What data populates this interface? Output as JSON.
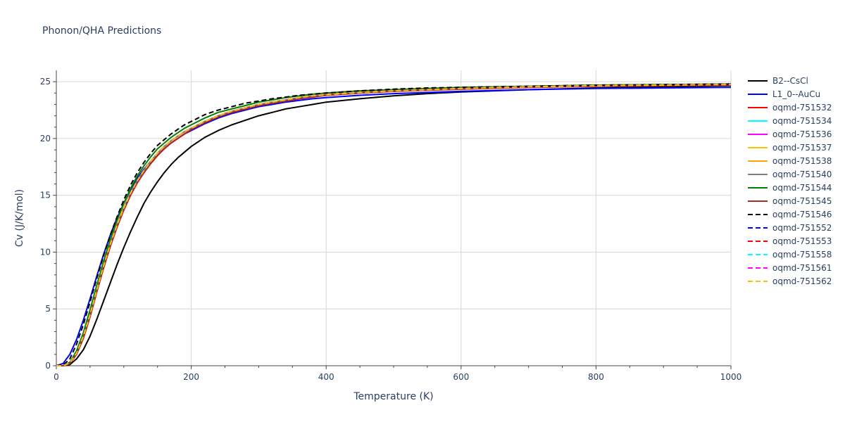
{
  "chart_data": {
    "type": "line",
    "title": "Phonon/QHA Predictions",
    "xlabel": "Temperature (K)",
    "ylabel": "Cv (J/K/mol)",
    "xlim": [
      0,
      1000
    ],
    "ylim": [
      0,
      26
    ],
    "xticks": [
      0,
      200,
      400,
      600,
      800,
      1000
    ],
    "yticks": [
      0,
      5,
      10,
      15,
      20,
      25
    ],
    "grid": true,
    "legend_position": "right",
    "x": [
      0,
      10,
      20,
      30,
      40,
      50,
      60,
      70,
      80,
      90,
      100,
      110,
      120,
      130,
      140,
      150,
      160,
      170,
      180,
      190,
      200,
      220,
      240,
      260,
      280,
      300,
      320,
      340,
      360,
      380,
      400,
      450,
      500,
      550,
      600,
      700,
      800,
      900,
      1000
    ],
    "series": [
      {
        "name": "B2--CsCl",
        "color": "#000000",
        "dash": "solid",
        "values": [
          0,
          0,
          0.1,
          0.6,
          1.4,
          2.6,
          4.1,
          5.7,
          7.3,
          8.9,
          10.4,
          11.8,
          13.1,
          14.3,
          15.3,
          16.2,
          17.0,
          17.7,
          18.3,
          18.8,
          19.3,
          20.1,
          20.7,
          21.2,
          21.6,
          22.0,
          22.3,
          22.6,
          22.8,
          23.0,
          23.2,
          23.5,
          23.75,
          23.95,
          24.1,
          24.3,
          24.45,
          24.55,
          24.65
        ]
      },
      {
        "name": "L1_0--AuCu",
        "color": "#0000ff",
        "dash": "solid",
        "values": [
          0,
          0.2,
          1.0,
          2.3,
          4.0,
          5.9,
          7.9,
          9.8,
          11.5,
          13.0,
          14.3,
          15.5,
          16.5,
          17.3,
          18.0,
          18.6,
          19.1,
          19.6,
          20.0,
          20.4,
          20.7,
          21.3,
          21.8,
          22.2,
          22.5,
          22.8,
          23.0,
          23.2,
          23.35,
          23.5,
          23.6,
          23.8,
          23.95,
          24.05,
          24.15,
          24.3,
          24.4,
          24.45,
          24.5
        ]
      },
      {
        "name": "oqmd-751532",
        "color": "#ff0000",
        "dash": "solid",
        "values": [
          0,
          0,
          0.2,
          1.0,
          2.4,
          4.3,
          6.5,
          8.6,
          10.5,
          12.2,
          13.7,
          15.0,
          16.1,
          17.0,
          17.8,
          18.5,
          19.1,
          19.6,
          20.0,
          20.4,
          20.8,
          21.4,
          21.9,
          22.3,
          22.6,
          22.9,
          23.1,
          23.3,
          23.5,
          23.65,
          23.8,
          24.0,
          24.15,
          24.25,
          24.35,
          24.5,
          24.6,
          24.65,
          24.7
        ]
      },
      {
        "name": "oqmd-751534",
        "color": "#00ffff",
        "dash": "solid",
        "values": [
          0,
          0,
          0.25,
          1.1,
          2.6,
          4.5,
          6.7,
          8.8,
          10.7,
          12.4,
          13.9,
          15.2,
          16.3,
          17.2,
          18.0,
          18.7,
          19.3,
          19.8,
          20.2,
          20.6,
          20.9,
          21.5,
          22.0,
          22.4,
          22.7,
          23.0,
          23.2,
          23.4,
          23.6,
          23.75,
          23.85,
          24.05,
          24.2,
          24.3,
          24.4,
          24.55,
          24.65,
          24.7,
          24.75
        ]
      },
      {
        "name": "oqmd-751536",
        "color": "#ff00ff",
        "dash": "solid",
        "values": [
          0,
          0,
          0.25,
          1.1,
          2.6,
          4.5,
          6.7,
          8.8,
          10.7,
          12.4,
          13.9,
          15.2,
          16.3,
          17.2,
          18.0,
          18.7,
          19.3,
          19.8,
          20.2,
          20.6,
          20.9,
          21.5,
          22.0,
          22.4,
          22.7,
          23.0,
          23.2,
          23.4,
          23.6,
          23.75,
          23.85,
          24.05,
          24.2,
          24.3,
          24.4,
          24.55,
          24.65,
          24.7,
          24.75
        ]
      },
      {
        "name": "oqmd-751537",
        "color": "#ffbf00",
        "dash": "solid",
        "values": [
          0,
          0,
          0.25,
          1.1,
          2.6,
          4.5,
          6.7,
          8.8,
          10.7,
          12.4,
          13.9,
          15.2,
          16.3,
          17.2,
          18.0,
          18.7,
          19.3,
          19.8,
          20.2,
          20.6,
          20.9,
          21.5,
          22.0,
          22.4,
          22.7,
          23.0,
          23.2,
          23.4,
          23.6,
          23.75,
          23.85,
          24.05,
          24.2,
          24.3,
          24.4,
          24.55,
          24.65,
          24.7,
          24.75
        ]
      },
      {
        "name": "oqmd-751538",
        "color": "#ffa500",
        "dash": "solid",
        "values": [
          0,
          0,
          0.25,
          1.1,
          2.6,
          4.5,
          6.7,
          8.8,
          10.7,
          12.4,
          13.9,
          15.2,
          16.3,
          17.2,
          18.0,
          18.7,
          19.3,
          19.8,
          20.2,
          20.6,
          20.9,
          21.5,
          22.0,
          22.4,
          22.7,
          23.0,
          23.2,
          23.4,
          23.6,
          23.75,
          23.85,
          24.05,
          24.2,
          24.3,
          24.4,
          24.55,
          24.65,
          24.7,
          24.75
        ]
      },
      {
        "name": "oqmd-751540",
        "color": "#808080",
        "dash": "solid",
        "values": [
          0,
          0,
          0.25,
          1.1,
          2.6,
          4.5,
          6.7,
          8.8,
          10.7,
          12.4,
          13.9,
          15.2,
          16.3,
          17.2,
          18.0,
          18.7,
          19.3,
          19.8,
          20.2,
          20.6,
          20.9,
          21.5,
          22.0,
          22.4,
          22.7,
          23.0,
          23.2,
          23.4,
          23.6,
          23.75,
          23.85,
          24.05,
          24.2,
          24.3,
          24.4,
          24.55,
          24.65,
          24.7,
          24.75
        ]
      },
      {
        "name": "oqmd-751544",
        "color": "#008000",
        "dash": "solid",
        "values": [
          0,
          0,
          0.3,
          1.3,
          2.9,
          4.9,
          7.1,
          9.2,
          11.1,
          12.8,
          14.3,
          15.6,
          16.7,
          17.6,
          18.4,
          19.1,
          19.6,
          20.1,
          20.5,
          20.9,
          21.2,
          21.8,
          22.3,
          22.6,
          22.9,
          23.2,
          23.4,
          23.6,
          23.75,
          23.9,
          24.0,
          24.2,
          24.3,
          24.4,
          24.5,
          24.6,
          24.7,
          24.75,
          24.8
        ]
      },
      {
        "name": "oqmd-751545",
        "color": "#a52a2a",
        "dash": "solid",
        "values": [
          0,
          0,
          0.2,
          1.0,
          2.4,
          4.3,
          6.5,
          8.6,
          10.5,
          12.2,
          13.7,
          15.0,
          16.1,
          17.0,
          17.8,
          18.5,
          19.1,
          19.6,
          20.0,
          20.4,
          20.8,
          21.4,
          21.9,
          22.3,
          22.6,
          22.9,
          23.1,
          23.3,
          23.5,
          23.65,
          23.8,
          24.0,
          24.15,
          24.25,
          24.35,
          24.5,
          24.6,
          24.65,
          24.7
        ]
      },
      {
        "name": "oqmd-751546",
        "color": "#000000",
        "dash": "dash",
        "values": [
          0,
          0.05,
          0.6,
          1.9,
          3.6,
          5.6,
          7.7,
          9.7,
          11.5,
          13.1,
          14.6,
          15.9,
          17.0,
          17.9,
          18.7,
          19.4,
          19.9,
          20.4,
          20.8,
          21.2,
          21.5,
          22.1,
          22.5,
          22.8,
          23.1,
          23.3,
          23.5,
          23.65,
          23.8,
          23.9,
          24.0,
          24.2,
          24.35,
          24.45,
          24.5,
          24.6,
          24.7,
          24.75,
          24.8
        ]
      },
      {
        "name": "oqmd-751552",
        "color": "#0000ff",
        "dash": "dash",
        "values": [
          0,
          0,
          0.25,
          1.1,
          2.6,
          4.5,
          6.7,
          8.8,
          10.7,
          12.4,
          13.9,
          15.2,
          16.3,
          17.2,
          18.0,
          18.7,
          19.3,
          19.8,
          20.2,
          20.6,
          20.9,
          21.5,
          22.0,
          22.4,
          22.7,
          23.0,
          23.2,
          23.4,
          23.6,
          23.75,
          23.85,
          24.05,
          24.2,
          24.3,
          24.4,
          24.55,
          24.65,
          24.7,
          24.75
        ]
      },
      {
        "name": "oqmd-751553",
        "color": "#ff0000",
        "dash": "dash",
        "values": [
          0,
          0,
          0.25,
          1.1,
          2.6,
          4.5,
          6.7,
          8.8,
          10.7,
          12.4,
          13.9,
          15.2,
          16.3,
          17.2,
          18.0,
          18.7,
          19.3,
          19.8,
          20.2,
          20.6,
          20.9,
          21.5,
          22.0,
          22.4,
          22.7,
          23.0,
          23.2,
          23.4,
          23.6,
          23.75,
          23.85,
          24.05,
          24.2,
          24.3,
          24.4,
          24.55,
          24.65,
          24.7,
          24.75
        ]
      },
      {
        "name": "oqmd-751558",
        "color": "#00ffff",
        "dash": "dash",
        "values": [
          0,
          0,
          0.25,
          1.1,
          2.6,
          4.5,
          6.7,
          8.8,
          10.7,
          12.4,
          13.9,
          15.2,
          16.3,
          17.2,
          18.0,
          18.7,
          19.3,
          19.8,
          20.2,
          20.6,
          20.9,
          21.5,
          22.0,
          22.4,
          22.7,
          23.0,
          23.2,
          23.4,
          23.6,
          23.75,
          23.85,
          24.05,
          24.2,
          24.3,
          24.4,
          24.55,
          24.65,
          24.7,
          24.75
        ]
      },
      {
        "name": "oqmd-751561",
        "color": "#ff00ff",
        "dash": "dash",
        "values": [
          0,
          0,
          0.25,
          1.1,
          2.6,
          4.5,
          6.7,
          8.8,
          10.7,
          12.4,
          13.9,
          15.2,
          16.3,
          17.2,
          18.0,
          18.7,
          19.3,
          19.8,
          20.2,
          20.6,
          20.9,
          21.5,
          22.0,
          22.4,
          22.7,
          23.0,
          23.2,
          23.4,
          23.6,
          23.75,
          23.85,
          24.05,
          24.2,
          24.3,
          24.4,
          24.55,
          24.65,
          24.7,
          24.75
        ]
      },
      {
        "name": "oqmd-751562",
        "color": "#ffbf00",
        "dash": "dash",
        "values": [
          0,
          0,
          0.25,
          1.1,
          2.6,
          4.5,
          6.7,
          8.8,
          10.7,
          12.4,
          13.9,
          15.2,
          16.3,
          17.2,
          18.0,
          18.7,
          19.3,
          19.8,
          20.2,
          20.6,
          20.9,
          21.5,
          22.0,
          22.4,
          22.7,
          23.0,
          23.2,
          23.4,
          23.6,
          23.75,
          23.85,
          24.05,
          24.2,
          24.3,
          24.4,
          24.55,
          24.65,
          24.7,
          24.75
        ]
      }
    ]
  }
}
